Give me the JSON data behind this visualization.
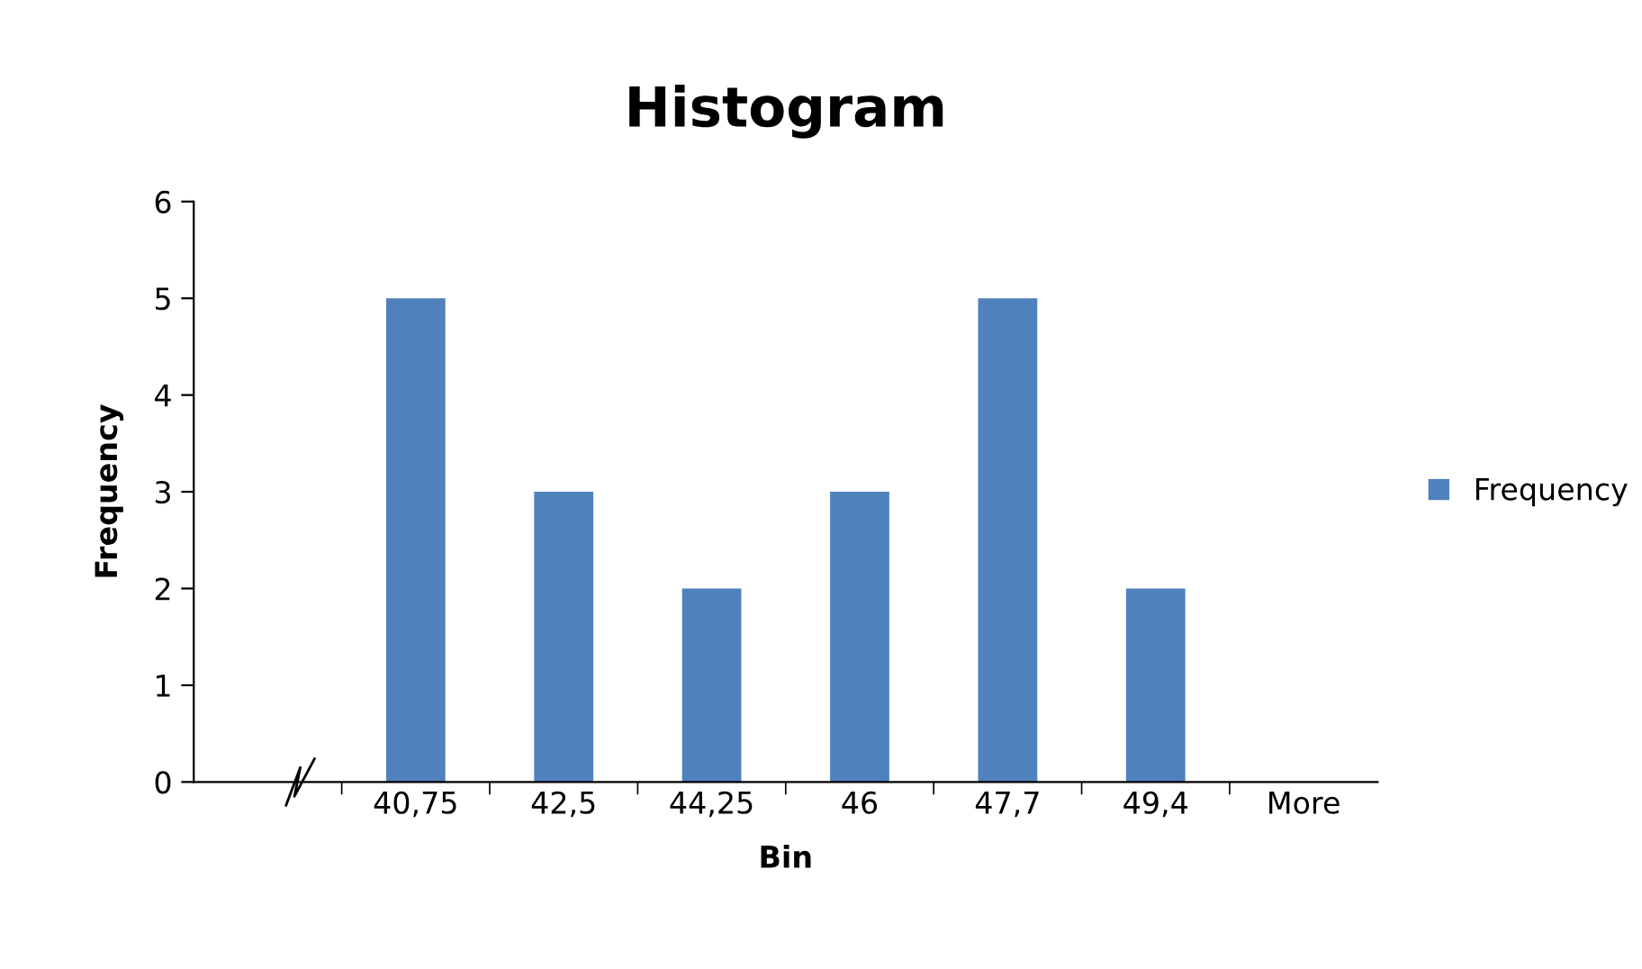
{
  "chart_data": {
    "type": "bar",
    "title": "Histogram",
    "xlabel": "Bin",
    "ylabel": "Frequency",
    "categories": [
      null,
      "40,75",
      "42,5",
      "44,25",
      "46",
      "47,7",
      "49,4",
      "More"
    ],
    "series": [
      {
        "name": "Frequency",
        "color": "#4f81bd",
        "values": [
          null,
          5,
          3,
          2,
          3,
          5,
          2,
          0
        ]
      }
    ],
    "ylim": [
      0,
      6
    ],
    "yticks": [
      0,
      1,
      2,
      3,
      4,
      5,
      6
    ],
    "grid": false,
    "legend": "right"
  }
}
